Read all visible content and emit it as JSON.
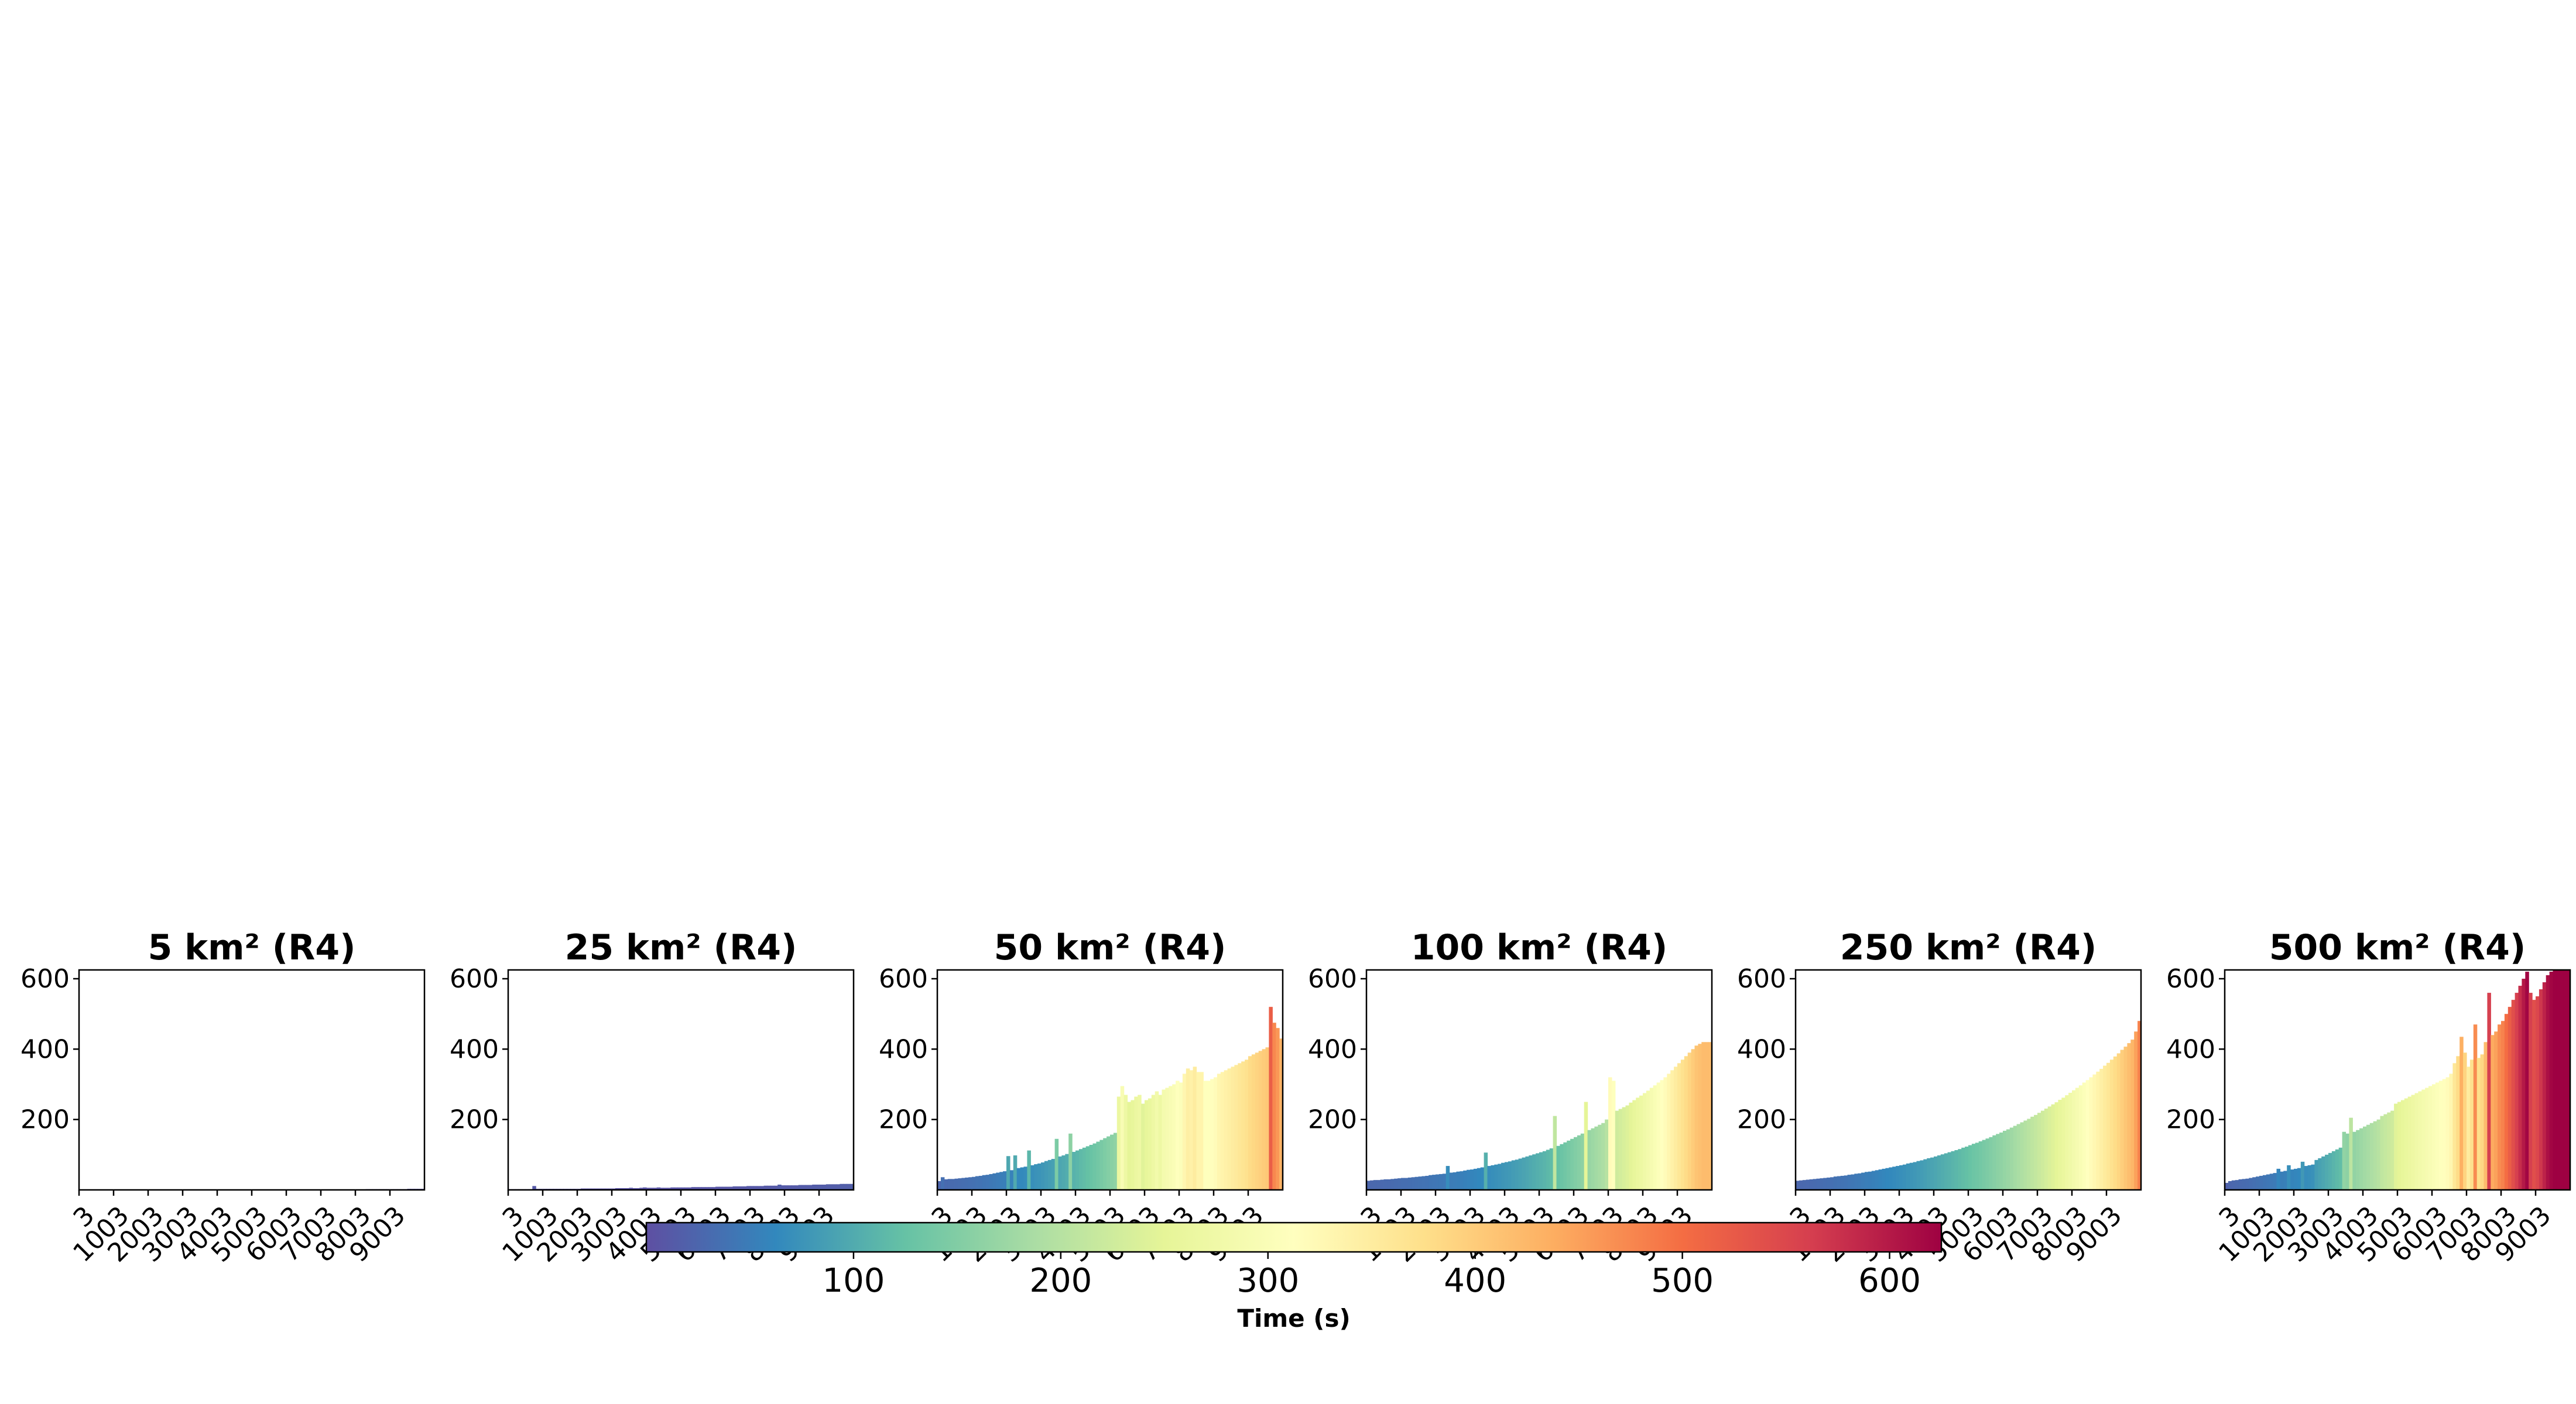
{
  "chart_data": {
    "type": "bar",
    "colormap": "Spectral_r",
    "color_range": [
      0,
      625
    ],
    "ylim": [
      0,
      625
    ],
    "yticks": [
      200,
      400,
      600
    ],
    "xlim": [
      3,
      10003
    ],
    "xticks": [
      3,
      1003,
      2003,
      3003,
      4003,
      5003,
      6003,
      7003,
      8003,
      9003
    ],
    "panels": [
      {
        "title": "5 km² (R4)",
        "values": [
          1,
          1,
          1,
          1,
          1,
          1,
          1,
          1,
          1,
          1,
          1,
          1,
          1,
          1,
          1,
          1,
          1,
          1,
          1,
          1,
          1,
          1,
          1,
          1,
          1,
          1,
          1,
          1,
          1,
          1,
          1,
          1,
          1,
          1,
          1,
          1,
          1,
          1,
          1,
          1,
          1,
          1,
          1,
          1,
          1,
          1,
          1,
          1,
          1,
          1,
          1,
          1,
          1,
          1,
          1,
          1,
          1,
          1,
          1,
          1,
          1,
          1,
          1,
          1,
          1,
          1,
          1,
          1,
          1,
          1,
          1,
          1,
          1,
          1,
          1,
          1,
          1,
          1,
          1,
          1,
          1,
          1,
          1,
          2,
          2,
          2,
          2,
          2,
          2,
          2,
          2,
          2,
          2,
          2,
          2,
          3,
          3,
          3,
          3,
          3
        ]
      },
      {
        "title": "25 km² (R4)",
        "values": [
          2,
          2,
          2,
          2,
          2,
          2,
          2,
          11,
          3,
          3,
          3,
          3,
          3,
          3,
          3,
          3,
          3,
          3,
          3,
          3,
          3,
          4,
          4,
          4,
          4,
          4,
          4,
          4,
          4,
          4,
          4,
          5,
          5,
          5,
          5,
          6,
          5,
          5,
          6,
          7,
          6,
          6,
          6,
          7,
          6,
          6,
          6,
          7,
          7,
          7,
          7,
          7,
          7,
          8,
          8,
          8,
          8,
          8,
          8,
          8,
          9,
          9,
          9,
          9,
          9,
          10,
          10,
          10,
          10,
          11,
          11,
          11,
          11,
          11,
          12,
          12,
          12,
          12,
          15,
          13,
          13,
          13,
          13,
          13,
          14,
          14,
          14,
          14,
          15,
          15,
          15,
          15,
          16,
          16,
          16,
          16,
          17,
          17,
          17,
          17
        ]
      },
      {
        "title": "50 km² (R4)",
        "values": [
          25,
          36,
          30,
          31,
          31,
          32,
          33,
          34,
          35,
          36,
          37,
          39,
          40,
          42,
          43,
          45,
          47,
          49,
          51,
          53,
          96,
          56,
          98,
          62,
          64,
          66,
          112,
          70,
          73,
          75,
          78,
          82,
          85,
          88,
          145,
          95,
          98,
          102,
          160,
          108,
          112,
          116,
          120,
          124,
          128,
          132,
          137,
          142,
          147,
          152,
          157,
          162,
          265,
          295,
          270,
          250,
          255,
          265,
          270,
          245,
          255,
          260,
          270,
          280,
          270,
          285,
          290,
          295,
          300,
          310,
          305,
          330,
          345,
          340,
          350,
          335,
          335,
          310,
          310,
          315,
          320,
          330,
          335,
          340,
          345,
          350,
          355,
          360,
          365,
          370,
          380,
          385,
          390,
          395,
          400,
          405,
          520,
          475,
          460,
          430
        ]
      },
      {
        "title": "100 km² (R4)",
        "values": [
          26,
          27,
          28,
          28,
          29,
          30,
          30,
          31,
          32,
          33,
          34,
          34,
          35,
          36,
          37,
          38,
          39,
          40,
          42,
          43,
          44,
          45,
          46,
          68,
          49,
          50,
          52,
          53,
          55,
          57,
          58,
          60,
          62,
          64,
          106,
          68,
          70,
          72,
          74,
          77,
          79,
          81,
          84,
          86,
          89,
          92,
          95,
          98,
          101,
          104,
          107,
          110,
          114,
          118,
          210,
          125,
          130,
          135,
          140,
          145,
          150,
          155,
          160,
          250,
          170,
          175,
          180,
          185,
          190,
          200,
          320,
          310,
          225,
          230,
          235,
          240,
          248,
          255,
          262,
          268,
          275,
          282,
          290,
          297,
          305,
          312,
          320,
          330,
          340,
          350,
          360,
          370,
          380,
          390,
          400,
          410,
          415,
          420,
          420,
          420
        ]
      },
      {
        "title": "250 km² (R4)",
        "values": [
          26,
          27,
          28,
          29,
          30,
          31,
          32,
          33,
          34,
          35,
          36,
          38,
          39,
          40,
          41,
          43,
          44,
          46,
          47,
          49,
          51,
          52,
          54,
          56,
          58,
          60,
          62,
          64,
          66,
          68,
          70,
          72,
          75,
          77,
          79,
          82,
          84,
          87,
          90,
          92,
          95,
          98,
          101,
          104,
          107,
          110,
          113,
          116,
          120,
          123,
          127,
          131,
          134,
          138,
          142,
          146,
          150,
          155,
          159,
          163,
          168,
          172,
          177,
          182,
          187,
          192,
          197,
          202,
          208,
          213,
          219,
          225,
          231,
          237,
          243,
          249,
          256,
          262,
          269,
          276,
          283,
          290,
          297,
          305,
          312,
          320,
          328,
          336,
          344,
          353,
          361,
          370,
          379,
          388,
          398,
          407,
          417,
          427,
          450,
          480
        ]
      },
      {
        "title": "500 km² (R4)",
        "values": [
          20,
          25,
          27,
          28,
          30,
          31,
          32,
          34,
          36,
          38,
          40,
          42,
          44,
          46,
          48,
          60,
          52,
          54,
          70,
          58,
          60,
          62,
          80,
          68,
          70,
          72,
          85,
          90,
          95,
          100,
          105,
          110,
          115,
          120,
          165,
          160,
          205,
          165,
          170,
          175,
          180,
          185,
          190,
          195,
          200,
          210,
          215,
          220,
          225,
          245,
          250,
          255,
          260,
          265,
          270,
          275,
          280,
          285,
          290,
          295,
          300,
          305,
          310,
          315,
          320,
          330,
          360,
          380,
          435,
          390,
          350,
          370,
          470,
          375,
          385,
          420,
          560,
          440,
          450,
          470,
          480,
          500,
          520,
          540,
          560,
          580,
          600,
          620,
          560,
          540,
          550,
          570,
          590,
          610,
          620,
          625,
          625,
          625,
          625,
          625
        ]
      }
    ],
    "colorbar": {
      "label": "Time (s)",
      "ticks": [
        100,
        200,
        300,
        400,
        500,
        600
      ]
    }
  }
}
